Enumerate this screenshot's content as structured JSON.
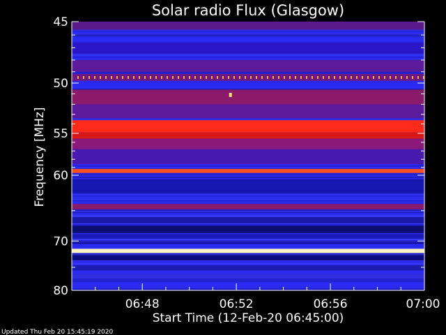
{
  "chart_data": {
    "type": "heatmap",
    "title": "Solar radio Flux (Glasgow)",
    "xlabel": "Start Time (12-Feb-20 06:45:00)",
    "ylabel": "Frequency [MHz]",
    "y_unit": "MHz",
    "y_scale": "reciprocal",
    "ylim": [
      45,
      80
    ],
    "y_ticks": [
      45,
      50,
      55,
      60,
      70,
      80
    ],
    "y_ticks_minor": [
      46,
      47,
      48,
      49,
      51,
      52,
      53,
      54,
      56,
      57,
      58,
      59,
      65,
      75
    ],
    "xlim": [
      "06:45",
      "07:00"
    ],
    "x_ticks": [
      "06:48",
      "06:52",
      "06:56",
      "07:00"
    ],
    "x_ticks_minor": [
      "06:46",
      "06:47",
      "06:49",
      "06:50",
      "06:51",
      "06:53",
      "06:54",
      "06:55",
      "06:57",
      "06:58",
      "06:59"
    ],
    "colormap": [
      "#0a0a60",
      "#1a1ad8",
      "#3a3af8",
      "#8a1a9a",
      "#d81818",
      "#ff2a1a",
      "#ffd040",
      "#ffffe0"
    ],
    "background_color": "#2a2af0",
    "bands": [
      {
        "f_low": 45.0,
        "f_high": 45.6,
        "color": "#5a1a8a"
      },
      {
        "f_low": 46.6,
        "f_high": 47.5,
        "color": "#2a18c8"
      },
      {
        "f_low": 48.0,
        "f_high": 49.0,
        "color": "#5a1a9a"
      },
      {
        "f_low": 49.2,
        "f_high": 49.8,
        "color": "#701a80"
      },
      {
        "f_low": 50.6,
        "f_high": 52.0,
        "color": "#8a1a6a"
      },
      {
        "f_low": 52.0,
        "f_high": 53.4,
        "color": "#5a1a9a"
      },
      {
        "f_low": 53.6,
        "f_high": 54.9,
        "color": "#ff2a1a"
      },
      {
        "f_low": 54.9,
        "f_high": 55.6,
        "color": "#d81818"
      },
      {
        "f_low": 55.6,
        "f_high": 56.8,
        "color": "#8a1a7a"
      },
      {
        "f_low": 56.8,
        "f_high": 58.6,
        "color": "#4a1ab0"
      },
      {
        "f_low": 59.2,
        "f_high": 59.7,
        "color": "#ff5020"
      },
      {
        "f_low": 60.5,
        "f_high": 62.5,
        "color": "#1616b0"
      },
      {
        "f_low": 64.0,
        "f_high": 64.8,
        "color": "#8a1a6a"
      },
      {
        "f_low": 66.0,
        "f_high": 67.0,
        "color": "#1a1aa8"
      },
      {
        "f_low": 67.4,
        "f_high": 68.6,
        "color": "#0c0c70"
      },
      {
        "f_low": 68.8,
        "f_high": 69.6,
        "color": "#1a1ab8"
      },
      {
        "f_low": 71.4,
        "f_high": 72.2,
        "color": "#fff4c0"
      },
      {
        "f_low": 72.6,
        "f_high": 73.6,
        "color": "#0c0c80"
      },
      {
        "f_low": 74.6,
        "f_high": 75.6,
        "color": "#1c1cb0"
      },
      {
        "f_low": 76.5,
        "f_high": 77.3,
        "color": "#3030e0"
      }
    ],
    "interference_line": {
      "frequency": 49.5,
      "color": "#ffb030"
    },
    "spikes": [
      {
        "time": "06:51:45",
        "frequency": 51.1,
        "color": "#ffe070"
      }
    ]
  },
  "footer": {
    "updated_text": "Updated Thu Feb 20 15:45:19 2020"
  }
}
